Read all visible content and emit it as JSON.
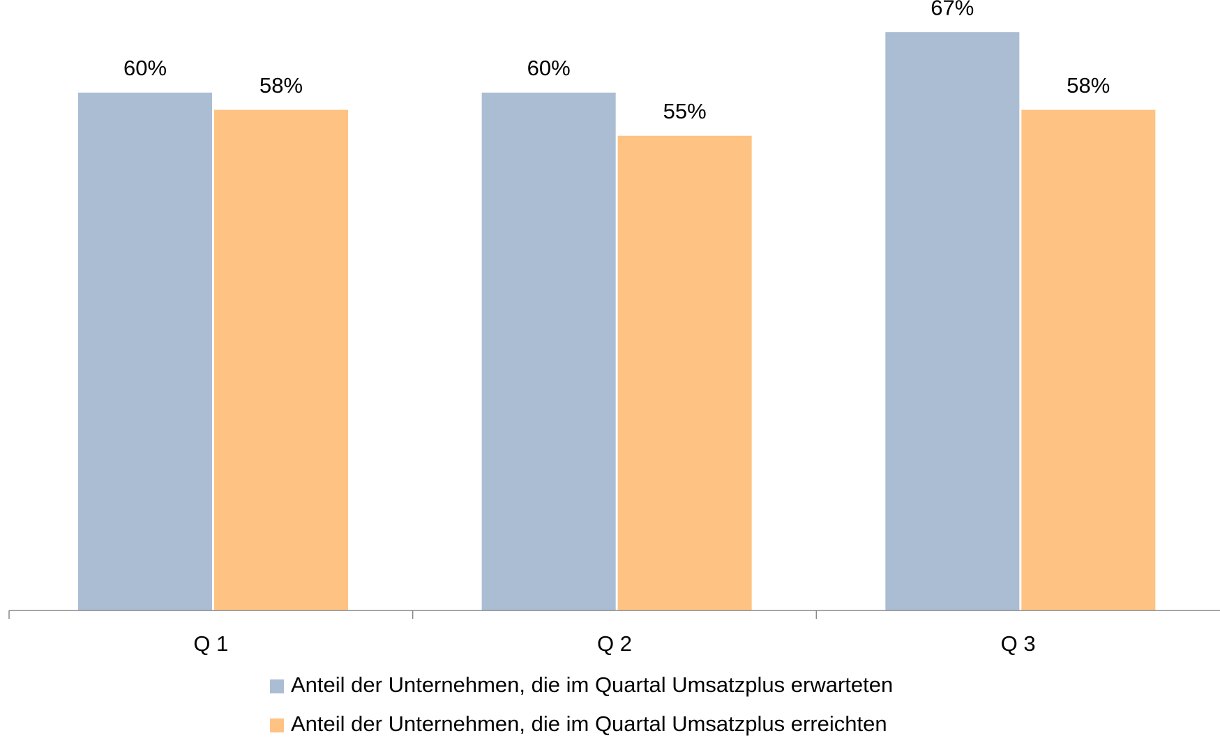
{
  "chart_data": {
    "type": "bar",
    "categories": [
      "Q 1",
      "Q 2",
      "Q 3"
    ],
    "series": [
      {
        "name": "Anteil der Unternehmen, die im Quartal Umsatzplus erwarteten",
        "color": "#aabdd3",
        "values": [
          60,
          60,
          67
        ],
        "value_labels": [
          "60%",
          "60%",
          "67%"
        ]
      },
      {
        "name": "Anteil der Unternehmen, die im Quartal Umsatzplus erreichten",
        "color": "#fec382",
        "values": [
          58,
          55,
          58
        ],
        "value_labels": [
          "58%",
          "55%",
          "58%"
        ]
      }
    ],
    "ylim": [
      0,
      70
    ],
    "legend": "bottom"
  }
}
